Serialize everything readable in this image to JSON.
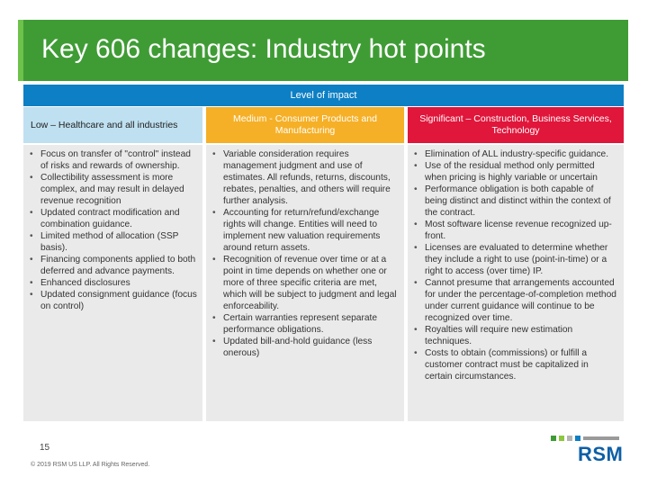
{
  "slide": {
    "title": "Key 606 changes: Industry hot points",
    "level_of_impact": "Level of impact",
    "page_number": "15",
    "copyright": "© 2019 RSM US LLP. All Rights Reserved.",
    "logo": "RSM"
  },
  "columns": {
    "low": {
      "header": "Low – Healthcare and all industries",
      "color": "#bfe0f0",
      "items": [
        "Focus on transfer of \"control\" instead of risks and rewards of ownership.",
        "Collectibility assessment is more complex, and may result in delayed revenue recognition",
        "Updated contract modification and combination guidance.",
        "Limited method of allocation (SSP basis).",
        "Financing components applied to both deferred and advance payments.",
        "Enhanced disclosures",
        "Updated consignment guidance (focus on control)"
      ]
    },
    "medium": {
      "header": "Medium - Consumer Products and Manufacturing",
      "color": "#f5b027",
      "items": [
        "Variable consideration requires management judgment and use of estimates. All refunds, returns, discounts, rebates, penalties, and others will require further analysis.",
        "Accounting for return/refund/exchange rights will change. Entities will need to implement new valuation requirements around return assets.",
        "Recognition of revenue over time or at a point in time depends on whether one or more of three specific criteria are met, which will be subject to judgment and legal enforceability.",
        "Certain warranties represent separate performance obligations.",
        "Updated bill-and-hold guidance (less onerous)"
      ]
    },
    "significant": {
      "header": "Significant – Construction, Business Services, Technology",
      "color": "#e0163b",
      "items": [
        "Elimination of ALL industry-specific guidance.",
        "Use of the residual method only permitted when pricing is highly variable or uncertain",
        "Performance obligation is both capable of being distinct and distinct within the context of the contract.",
        "Most software license revenue recognized up-front.",
        "Licenses are evaluated to determine whether they include a right to use (point-in-time) or a right to access (over time) IP.",
        "Cannot presume that arrangements accounted for under the percentage-of-completion method under current guidance will continue to be recognized over time.",
        "Royalties will require new estimation techniques.",
        "Costs to obtain (commissions) or fulfill a customer contract must be capitalized in certain circumstances."
      ]
    }
  },
  "colors": {
    "title_bar": "#3f9c35",
    "level_header": "#0d7fc4",
    "logo": "#0d5fa6"
  }
}
